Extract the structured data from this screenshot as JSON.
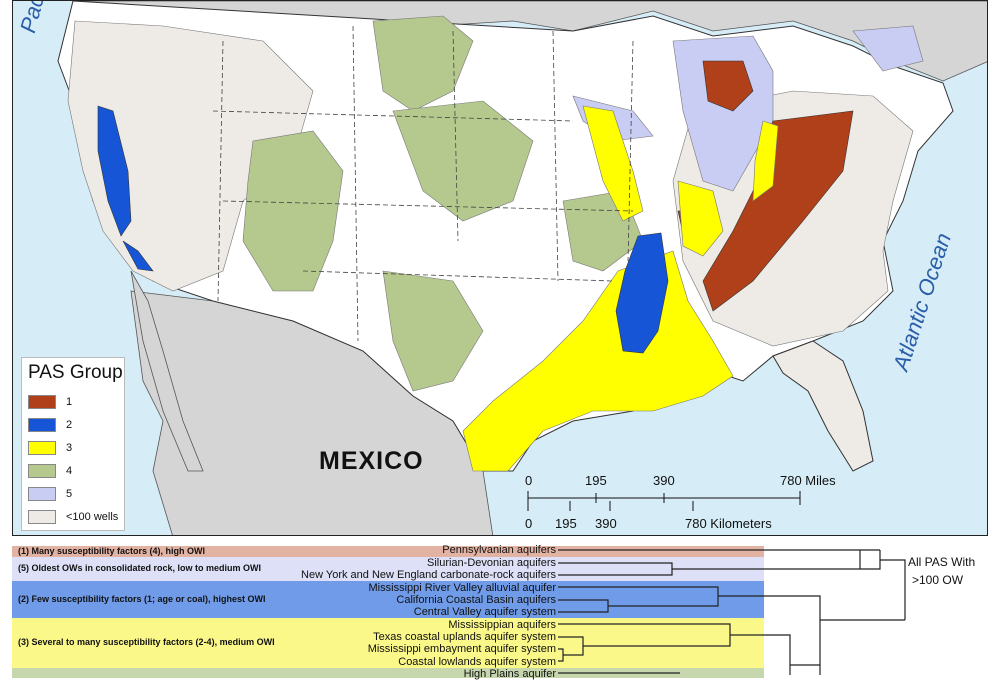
{
  "map": {
    "ocean_labels": {
      "pacific": "Pacific",
      "atlantic": "Atlantic Ocean"
    },
    "country_label": "MEXICO",
    "colors": {
      "ocean": "#d6ecf7",
      "land_other": "#d5d5d5",
      "land_us": "#ffffff",
      "group1": "#b0401a",
      "group2": "#1656d6",
      "group3": "#ffff00",
      "group4": "#b5c98e",
      "group5": "#c9cdf3",
      "under100": "#eeebe6"
    }
  },
  "legend": {
    "title": "PAS Group",
    "items": [
      {
        "label": "1",
        "color": "#b0401a"
      },
      {
        "label": "2",
        "color": "#1656d6"
      },
      {
        "label": "3",
        "color": "#ffff00"
      },
      {
        "label": "4",
        "color": "#b5c98e"
      },
      {
        "label": "5",
        "color": "#c9cdf3"
      },
      {
        "label": "<100 wells",
        "color": "#eeebe6"
      }
    ]
  },
  "scale": {
    "miles_ticks": [
      "0",
      "195",
      "390",
      "780 Miles"
    ],
    "km_ticks": [
      "0",
      "195",
      "390",
      "780 Kilometers"
    ]
  },
  "dendrogram": {
    "root_label_line1": "All PAS With",
    "root_label_line2": ">100 OW",
    "groups": [
      {
        "title": "(1) Many susceptibility factors (4), high OWI",
        "color": "#e2b2a2",
        "aquifers": [
          "Pennsylvanian aquifers"
        ]
      },
      {
        "title": "(5) Oldest OWs in consolidated rock, low to medium OWI",
        "color": "#dde0f7",
        "aquifers": [
          "Silurian-Devonian aquifers",
          "New York and New England carbonate-rock aquifers"
        ]
      },
      {
        "title": "(2) Few susceptibility factors (1; age or coal), highest OWI",
        "color": "#6f9be9",
        "aquifers": [
          "Mississippi River Valley alluvial aquifer",
          "California Coastal Basin aquifers",
          "Central Valley aquifer system"
        ]
      },
      {
        "title": "(3) Several to many susceptibility factors (2-4), medium OWI",
        "color": "#fbf88a",
        "aquifers": [
          "Mississippian aquifers",
          "Texas coastal uplands aquifer system",
          "Mississippi embayment aquifer system",
          "Coastal lowlands aquifer system"
        ]
      },
      {
        "title": "",
        "color": "#c6d6ad",
        "aquifers": [
          "High Plains aquifer"
        ]
      }
    ]
  }
}
